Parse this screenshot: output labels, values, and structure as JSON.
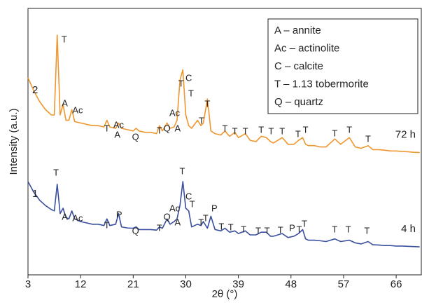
{
  "chart_data": {
    "type": "line",
    "xlabel": "2θ (°)",
    "ylabel": "Intensity (a.u.)",
    "xlim": [
      3,
      70.3
    ],
    "ylim": [
      0,
      100
    ],
    "xticks": [
      3,
      12,
      21,
      30,
      39,
      48,
      57,
      66
    ],
    "x": [
      3,
      4,
      5,
      6,
      7,
      7.5,
      8,
      8.5,
      9,
      9.5,
      10,
      10.5,
      11,
      12,
      13,
      14,
      15,
      16,
      16.5,
      17,
      18,
      18.5,
      19,
      20,
      21,
      21.5,
      22,
      23,
      24,
      25,
      25.5,
      26,
      26.8,
      27.3,
      28,
      28.5,
      29,
      29.5,
      30,
      30.5,
      31,
      32,
      32.6,
      33,
      33.7,
      34.3,
      35,
      36,
      36.7,
      37.5,
      38.4,
      39,
      40.2,
      41,
      42,
      42.9,
      43.8,
      44.5,
      45,
      46.5,
      47.5,
      48.5,
      49.3,
      50,
      50.5,
      51,
      52,
      53,
      54,
      55.5,
      56.5,
      58,
      59,
      60,
      61.2,
      62,
      63,
      64,
      65,
      66,
      67,
      68,
      69,
      70
    ],
    "series": [
      {
        "name": "2",
        "time": "72 h",
        "color": "#f0962e",
        "values": [
          74,
          69,
          65,
          62,
          60,
          60,
          90,
          60,
          64,
          58,
          58,
          62,
          57.5,
          57,
          56.5,
          56,
          56,
          55.5,
          58,
          55.5,
          55,
          57,
          55,
          54.5,
          54,
          55,
          54,
          53.5,
          53.5,
          53,
          56,
          54,
          57,
          55,
          55.5,
          58,
          73,
          77,
          60,
          56,
          55,
          58,
          56,
          57,
          66,
          54,
          53,
          52.5,
          54,
          52,
          53.5,
          51.5,
          53,
          50.5,
          50,
          52,
          51.5,
          50,
          49.5,
          51.5,
          49,
          49,
          50.5,
          51.5,
          49,
          48.5,
          48.5,
          48,
          48,
          51,
          49,
          51.5,
          48,
          47.5,
          48.5,
          47,
          47,
          46.8,
          46.5,
          46.5,
          46.3,
          46.2,
          46,
          45.9
        ],
        "annotations": [
          {
            "text": "T",
            "x": 9.2,
            "y": 88.2
          },
          {
            "text": "A",
            "x": 9.3,
            "y": 64.2
          },
          {
            "text": "Ac",
            "x": 11.5,
            "y": 61.6
          },
          {
            "text": "T",
            "x": 16.5,
            "y": 54.7
          },
          {
            "text": "Ac",
            "x": 18.5,
            "y": 56
          },
          {
            "text": "A",
            "x": 18.3,
            "y": 52.4
          },
          {
            "text": "Q",
            "x": 21.4,
            "y": 51.6
          },
          {
            "text": "T",
            "x": 25.5,
            "y": 53.9
          },
          {
            "text": "Q",
            "x": 26.8,
            "y": 54.7
          },
          {
            "text": "A",
            "x": 28.6,
            "y": 54.7
          },
          {
            "text": "Ac",
            "x": 28.1,
            "y": 60.5
          },
          {
            "text": "T",
            "x": 29.2,
            "y": 71.6
          },
          {
            "text": "C",
            "x": 30.5,
            "y": 73.7
          },
          {
            "text": "T",
            "x": 30.9,
            "y": 67.9
          },
          {
            "text": "T",
            "x": 32.7,
            "y": 57.6
          },
          {
            "text": "T",
            "x": 33.7,
            "y": 63.9
          },
          {
            "text": "T",
            "x": 36.7,
            "y": 54.7
          },
          {
            "text": "T",
            "x": 38.4,
            "y": 53.7
          },
          {
            "text": "T",
            "x": 40.2,
            "y": 53.7
          },
          {
            "text": "T",
            "x": 42.9,
            "y": 54.2
          },
          {
            "text": "T",
            "x": 44.6,
            "y": 53.7
          },
          {
            "text": "T",
            "x": 46.5,
            "y": 53.7
          },
          {
            "text": "T",
            "x": 49.2,
            "y": 52.6
          },
          {
            "text": "T",
            "x": 50.5,
            "y": 54.2
          },
          {
            "text": "T",
            "x": 55.5,
            "y": 52.9
          },
          {
            "text": "T",
            "x": 58,
            "y": 54.2
          },
          {
            "text": "T",
            "x": 61.2,
            "y": 50.8
          }
        ]
      },
      {
        "name": "1",
        "time": "4 h",
        "color": "#3a4fa0",
        "values": [
          35,
          31,
          28,
          26,
          24.5,
          24,
          34,
          23,
          25,
          21.5,
          21,
          24,
          21,
          20,
          19.5,
          19,
          19,
          18.5,
          21,
          18.5,
          19,
          23,
          18,
          17.6,
          17.5,
          18,
          17,
          17,
          17,
          16.8,
          18,
          17.5,
          21,
          19,
          20,
          21,
          26,
          35,
          25,
          24,
          18,
          19,
          18.5,
          20,
          17.5,
          22,
          17,
          16.5,
          17.5,
          16,
          16.5,
          15.5,
          16.5,
          15,
          15,
          16,
          16,
          14.5,
          14.5,
          15.5,
          14,
          14.5,
          15.5,
          17,
          13.5,
          13,
          13,
          12.8,
          12.5,
          13.5,
          12.5,
          13,
          12,
          11.6,
          12.5,
          11.3,
          11.2,
          11,
          11,
          10.8,
          10.8,
          10.7,
          10.6,
          10.5
        ],
        "annotations": [
          {
            "text": "T",
            "x": 7.8,
            "y": 38.2
          },
          {
            "text": "A",
            "x": 9.3,
            "y": 21.6
          },
          {
            "text": "Ac",
            "x": 11.5,
            "y": 21.1
          },
          {
            "text": "T",
            "x": 16.5,
            "y": 18.4
          },
          {
            "text": "P",
            "x": 18.6,
            "y": 22.4
          },
          {
            "text": "Q",
            "x": 21.4,
            "y": 16.3
          },
          {
            "text": "T",
            "x": 25.5,
            "y": 17.4
          },
          {
            "text": "Q",
            "x": 26.8,
            "y": 21.6
          },
          {
            "text": "Ac",
            "x": 28.1,
            "y": 24.7
          },
          {
            "text": "A",
            "x": 28.6,
            "y": 19.5
          },
          {
            "text": "T",
            "x": 29.4,
            "y": 38.7
          },
          {
            "text": "C",
            "x": 30.5,
            "y": 29.2
          },
          {
            "text": "T",
            "x": 31.1,
            "y": 26.3
          },
          {
            "text": "T",
            "x": 32.6,
            "y": 19.5
          },
          {
            "text": "T",
            "x": 33.4,
            "y": 21.1
          },
          {
            "text": "P",
            "x": 34.9,
            "y": 24.7
          },
          {
            "text": "T",
            "x": 36.1,
            "y": 17.9
          },
          {
            "text": "T",
            "x": 37.7,
            "y": 17.6
          },
          {
            "text": "T",
            "x": 39.9,
            "y": 16.8
          },
          {
            "text": "T",
            "x": 42.4,
            "y": 16.3
          },
          {
            "text": "T",
            "x": 43.9,
            "y": 16.3
          },
          {
            "text": "T",
            "x": 46.2,
            "y": 16.6
          },
          {
            "text": "P",
            "x": 48.2,
            "y": 17.4
          },
          {
            "text": "T",
            "x": 49.4,
            "y": 16.8
          },
          {
            "text": "T",
            "x": 50.3,
            "y": 18.9
          },
          {
            "text": "T",
            "x": 55.5,
            "y": 16.8
          },
          {
            "text": "T",
            "x": 57.8,
            "y": 16.8
          },
          {
            "text": "T",
            "x": 61,
            "y": 16.3
          }
        ]
      }
    ],
    "key": [
      "A – annite",
      "Ac – actinolite",
      "C – calcite",
      "T – 1.13 tobermorite",
      "Q – quartz"
    ]
  }
}
